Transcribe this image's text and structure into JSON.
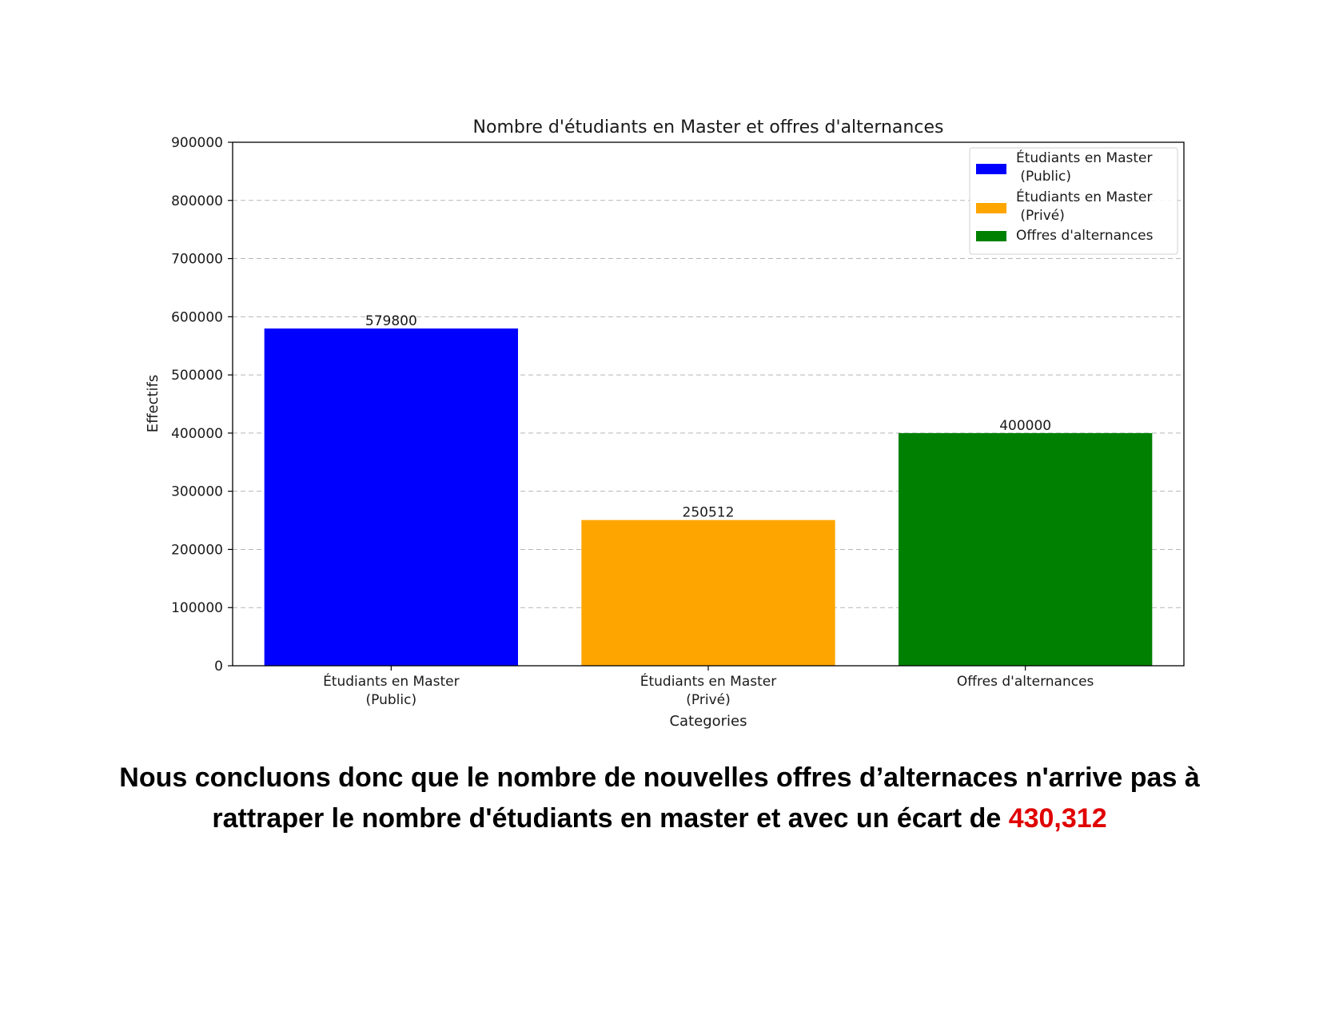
{
  "chart_data": {
    "type": "bar",
    "title": "Nombre d'étudiants en Master et offres d'alternances",
    "xlabel": "Categories",
    "ylabel": "Effectifs",
    "ylim": [
      0,
      900000
    ],
    "yticks": [
      0,
      100000,
      200000,
      300000,
      400000,
      500000,
      600000,
      700000,
      800000,
      900000
    ],
    "grid": "y-dashed",
    "legend_position": "top-right",
    "categories": [
      "Étudiants en Master\n(Public)",
      "Étudiants en Master\n(Privé)",
      "Offres d'alternances"
    ],
    "values": [
      579800,
      250512,
      400000
    ],
    "data_labels": [
      "579800",
      "250512",
      "400000"
    ],
    "colors": [
      "#0000ff",
      "#ffa500",
      "#008000"
    ],
    "legend": [
      "Étudiants en Master\n (Public)",
      "Étudiants en Master\n (Privé)",
      "Offres d'alternances"
    ]
  },
  "conclusion": {
    "line1": "Nous concluons donc que le nombre de nouvelles offres d’alternaces n'arrive pas à",
    "line2": "rattraper le nombre d'étudiants en master et avec un écart de ",
    "highlight": "430,312",
    "highlight_color": "#e00000"
  }
}
